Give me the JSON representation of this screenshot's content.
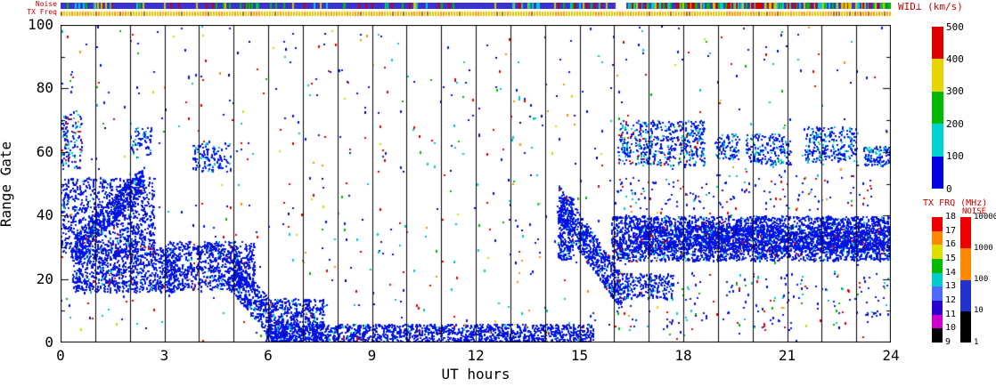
{
  "strips": {
    "noise": {
      "label": "Noise",
      "base_color": "#3c33cf",
      "gap_ut": [
        16.05,
        16.35
      ],
      "speck_colors": [
        "#00bb00",
        "#cc0000",
        "#cccc00",
        "#00cccc"
      ],
      "speck_count": 140,
      "dense_ut": [
        16.35,
        24
      ],
      "dense_count": 150
    },
    "tx_freq": {
      "label": "TX Freq",
      "dash_colors": [
        "#e2c400",
        "#ff9900",
        "#b36b00"
      ],
      "dash_weights": [
        0.62,
        0.28,
        0.1
      ]
    }
  },
  "colorbars": {
    "wid": {
      "title": "WID⊥ (km/s)",
      "tick_labels_bottom_to_top": [
        "0",
        "100",
        "200",
        "300",
        "400",
        "500"
      ],
      "segments_bottom_to_top": [
        "#0000e0",
        "#00d2d2",
        "#00bb00",
        "#e8d400",
        "#dd0000"
      ]
    },
    "tx_frq": {
      "title": "TX FRQ (MHz)",
      "tick_labels_bottom_to_top": [
        "9",
        "10",
        "11",
        "12",
        "13",
        "14",
        "15",
        "16",
        "17",
        "18"
      ],
      "segments_bottom_to_top": [
        "#000000",
        "#cc00cc",
        "#2a00cc",
        "#4d6bff",
        "#00cccc",
        "#00bb00",
        "#dede00",
        "#ff8800",
        "#ee0000"
      ]
    },
    "noise": {
      "title": "NOISE",
      "tick_labels_bottom_to_top": [
        "1",
        "10",
        "100",
        "1000",
        "10000"
      ],
      "segments_bottom_to_top": [
        "#000000",
        "#2233cc",
        "#ff8800",
        "#ee0000"
      ]
    }
  },
  "chart_data": {
    "type": "scatter",
    "x_label": "UT hours",
    "y_label": "Range Gate",
    "x_range": [
      0,
      24
    ],
    "y_range": [
      0,
      100
    ],
    "x_ticks": [
      0,
      3,
      6,
      9,
      12,
      15,
      18,
      21,
      24
    ],
    "y_ticks": [
      0,
      20,
      40,
      60,
      80,
      100
    ],
    "hour_gridlines_every": 1,
    "point_palette": {
      "blue": "#0014e6",
      "navy": "#000099",
      "cyan": "#00c8c8",
      "green": "#00b400",
      "red": "#dc0000",
      "orange": "#ff8c00",
      "yellow": "#d8d800"
    },
    "dense_color_weights": {
      "blue": 0.9,
      "navy": 0.05,
      "cyan": 0.04,
      "red": 0.01
    },
    "clusters": [
      {
        "ut": [
          0,
          2.7
        ],
        "gates": [
          27,
          52
        ],
        "count": 1000
      },
      {
        "type": "slant",
        "ut": [
          0.4,
          2.4
        ],
        "gate_start": 30,
        "gate_end": 52,
        "half_width": 4,
        "count": 500
      },
      {
        "ut": [
          0.3,
          3.3
        ],
        "gates": [
          16,
          30
        ],
        "count": 900
      },
      {
        "ut": [
          3.0,
          5.6
        ],
        "gates": [
          17,
          32
        ],
        "count": 800
      },
      {
        "type": "slant",
        "ut": [
          4.8,
          6.3
        ],
        "gate_start": 24,
        "gate_end": 4,
        "half_width": 6,
        "count": 450
      },
      {
        "ut": [
          5.9,
          15.4
        ],
        "gates": [
          0,
          6
        ],
        "count": 1600
      },
      {
        "ut": [
          6.0,
          7.6
        ],
        "gates": [
          0,
          14
        ],
        "count": 500
      },
      {
        "ut": [
          0,
          0.6
        ],
        "gates": [
          55,
          72
        ],
        "count": 120,
        "color_weights": {
          "blue": 0.7,
          "cyan": 0.2,
          "red": 0.1
        }
      },
      {
        "ut": [
          3.8,
          4.9
        ],
        "gates": [
          54,
          63
        ],
        "count": 130,
        "color_weights": {
          "blue": 0.8,
          "cyan": 0.2
        }
      },
      {
        "ut": [
          2.0,
          2.6
        ],
        "gates": [
          58,
          68
        ],
        "count": 60,
        "color_weights": {
          "blue": 0.8,
          "cyan": 0.2
        }
      },
      {
        "type": "slant",
        "ut": [
          14.4,
          16.2
        ],
        "gate_start": 44,
        "gate_end": 16,
        "half_width": 6,
        "count": 600
      },
      {
        "ut": [
          14.35,
          14.8
        ],
        "gates": [
          26,
          46
        ],
        "count": 250
      },
      {
        "ut": [
          15.9,
          24
        ],
        "gates": [
          26,
          40
        ],
        "count": 3000
      },
      {
        "ut": [
          16.5,
          24
        ],
        "gates": [
          29,
          37
        ],
        "count": 1500
      },
      {
        "ut": [
          16.1,
          18.6
        ],
        "gates": [
          56,
          70
        ],
        "count": 500,
        "color_weights": {
          "blue": 0.7,
          "cyan": 0.22,
          "red": 0.08
        }
      },
      {
        "ut": [
          18.9,
          19.6
        ],
        "gates": [
          58,
          66
        ],
        "count": 100,
        "color_weights": {
          "blue": 0.75,
          "cyan": 0.25
        }
      },
      {
        "ut": [
          19.8,
          21.1
        ],
        "gates": [
          56,
          66
        ],
        "count": 180,
        "color_weights": {
          "blue": 0.75,
          "cyan": 0.25
        }
      },
      {
        "ut": [
          21.5,
          23.0
        ],
        "gates": [
          57,
          68
        ],
        "count": 250,
        "color_weights": {
          "blue": 0.75,
          "cyan": 0.25
        }
      },
      {
        "ut": [
          23.2,
          24
        ],
        "gates": [
          56,
          62
        ],
        "count": 120,
        "color_weights": {
          "blue": 0.75,
          "cyan": 0.25
        }
      },
      {
        "ut": [
          16.2,
          17.7
        ],
        "gates": [
          14,
          22
        ],
        "count": 220
      },
      {
        "ut": [
          16,
          24
        ],
        "gates": [
          4,
          22
        ],
        "count": 150,
        "color_weights": {
          "blue": 0.6,
          "cyan": 0.15,
          "red": 0.15,
          "green": 0.1
        }
      },
      {
        "ut": [
          16,
          24
        ],
        "gates": [
          42,
          53
        ],
        "count": 130,
        "color_weights": {
          "blue": 0.7,
          "cyan": 0.15,
          "red": 0.15
        }
      }
    ],
    "background_scatter": {
      "count": 800,
      "color_weights": {
        "blue": 0.38,
        "red": 0.18,
        "cyan": 0.15,
        "green": 0.1,
        "orange": 0.06,
        "yellow": 0.05,
        "navy": 0.08
      }
    }
  }
}
